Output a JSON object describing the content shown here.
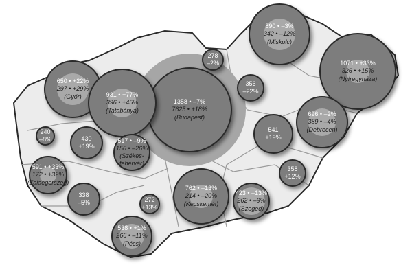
{
  "map": {
    "country": "Hungary",
    "colors": {
      "land": "#ececec",
      "bubble": "#7d7d7d",
      "bubble_highlight": "#a9a9a9",
      "budapest_ring": "#a6a6a6",
      "border": "#2a2a2a"
    },
    "bubbles": [
      {
        "line1": "1358 • –7%",
        "line2": "7625 • +18%",
        "city": "(Budapest)"
      },
      {
        "line1": "650 • +22%",
        "line2": "297 • +29%",
        "city": "(Győr)"
      },
      {
        "line1": "931 • +77%",
        "line2": "396 • +45%",
        "city": "(Tatabánya)"
      },
      {
        "line1": "278",
        "line2": "–2%"
      },
      {
        "line1": "356",
        "line2": "–22%"
      },
      {
        "line1": "890 • –3%",
        "line2": "342 • –12%",
        "city": "(Miskolc)"
      },
      {
        "line1": "1071 • +33%",
        "line2": "326 • +15%",
        "city": "(Nyíregyháza)"
      },
      {
        "line1": "696 • –2%",
        "line2": "389 • –4%",
        "city": "(Debrecen)"
      },
      {
        "line1": "541",
        "line2": "+19%"
      },
      {
        "line1": "358",
        "line2": "+12%"
      },
      {
        "line1": "762 • –13%",
        "line2": "214 • –20%",
        "city": "(Kecskemét)"
      },
      {
        "line1": "423 • –13%",
        "line2": "262 • –9%",
        "city": "(Szeged)"
      },
      {
        "line1": "240",
        "line2": "–8%"
      },
      {
        "line1": "430",
        "line2": "+19%"
      },
      {
        "line1": "517 • –9%",
        "line2": "156 • –26%",
        "city": "(Székes-\nfehérvár)"
      },
      {
        "line1": "591 • +33%",
        "line2": "172 • +32%",
        "city": "(Zalaegerszeg)"
      },
      {
        "line1": "338",
        "line2": "–5%"
      },
      {
        "line1": "272",
        "line2": "+13%"
      },
      {
        "line1": "538 • +1%",
        "line2": "266 • –11%",
        "city": "(Pécs)"
      }
    ]
  }
}
